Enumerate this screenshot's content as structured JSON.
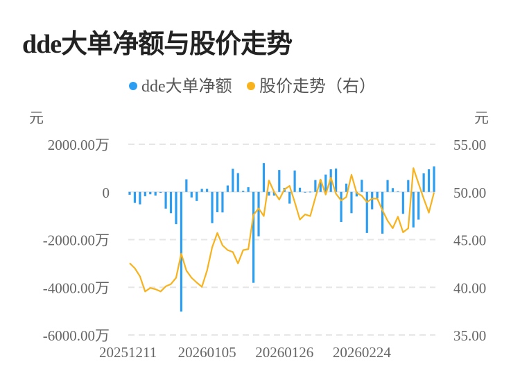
{
  "title": "dde大单净额与股价走势",
  "colors": {
    "bar": "#2c9ef2",
    "line": "#f7b21c",
    "grid": "#e6e6e6"
  },
  "chart_data": {
    "type": "bar+line",
    "title": "dde大单净额与股价走势",
    "legend": [
      {
        "label": "dde大单净额",
        "color": "#2c9ef2"
      },
      {
        "label": "股价走势（右）",
        "color": "#f7b21c"
      }
    ],
    "legend_position": "top-center",
    "left_axis": {
      "unit": "元",
      "ticks": [
        "2000.00万",
        "0",
        "-2000.00万",
        "-4000.00万",
        "-6000.00万"
      ],
      "tick_values": [
        2000,
        0,
        -2000,
        -4000,
        -6000
      ],
      "range": [
        -6000,
        2000
      ]
    },
    "right_axis": {
      "unit": "元",
      "ticks": [
        "55.00",
        "50.00",
        "45.00",
        "40.00",
        "35.00"
      ],
      "tick_values": [
        55,
        50,
        45,
        40,
        35
      ],
      "range": [
        35,
        55
      ]
    },
    "x_ticks": [
      {
        "label": "20251211",
        "index": 0
      },
      {
        "label": "20260105",
        "index": 15
      },
      {
        "label": "20260126",
        "index": 30
      },
      {
        "label": "20260224",
        "index": 45
      }
    ],
    "grid": true,
    "series": [
      {
        "name": "dde大单净额",
        "type": "bar",
        "unit": "万元",
        "values": [
          -120,
          -460,
          -520,
          -180,
          -100,
          -150,
          -40,
          -700,
          -890,
          -1350,
          -5020,
          530,
          -230,
          -380,
          130,
          130,
          -1310,
          -850,
          -860,
          270,
          970,
          790,
          50,
          200,
          -3810,
          -1860,
          1210,
          -150,
          -150,
          920,
          170,
          -490,
          900,
          175,
          -10,
          10,
          500,
          510,
          730,
          950,
          980,
          -1260,
          350,
          -890,
          -190,
          510,
          -1720,
          -730,
          -260,
          -1750,
          500,
          160,
          30,
          -920,
          500,
          -1490,
          -1160,
          780,
          950,
          1070
        ]
      },
      {
        "name": "股价走势（右）",
        "type": "line",
        "unit": "元",
        "values": [
          42.53,
          42.0,
          41.15,
          39.56,
          39.93,
          39.8,
          39.56,
          40.1,
          40.34,
          41.0,
          43.53,
          41.75,
          41.0,
          40.5,
          40.05,
          41.75,
          44.2,
          45.7,
          44.4,
          43.9,
          43.7,
          42.5,
          43.9,
          44.0,
          47.6,
          48.27,
          47.47,
          51.2,
          50.0,
          49.2,
          50.27,
          50.63,
          48.93,
          47.1,
          47.64,
          47.47,
          49.4,
          51.3,
          49.73,
          51.5,
          49.8,
          49.1,
          49.47,
          51.8,
          49.9,
          49.6,
          48.93,
          49.3,
          49.3,
          48.08,
          46.98,
          46.2,
          47.4,
          45.77,
          46.18,
          52.5,
          50.88,
          49.3,
          47.83,
          49.95
        ]
      }
    ]
  }
}
